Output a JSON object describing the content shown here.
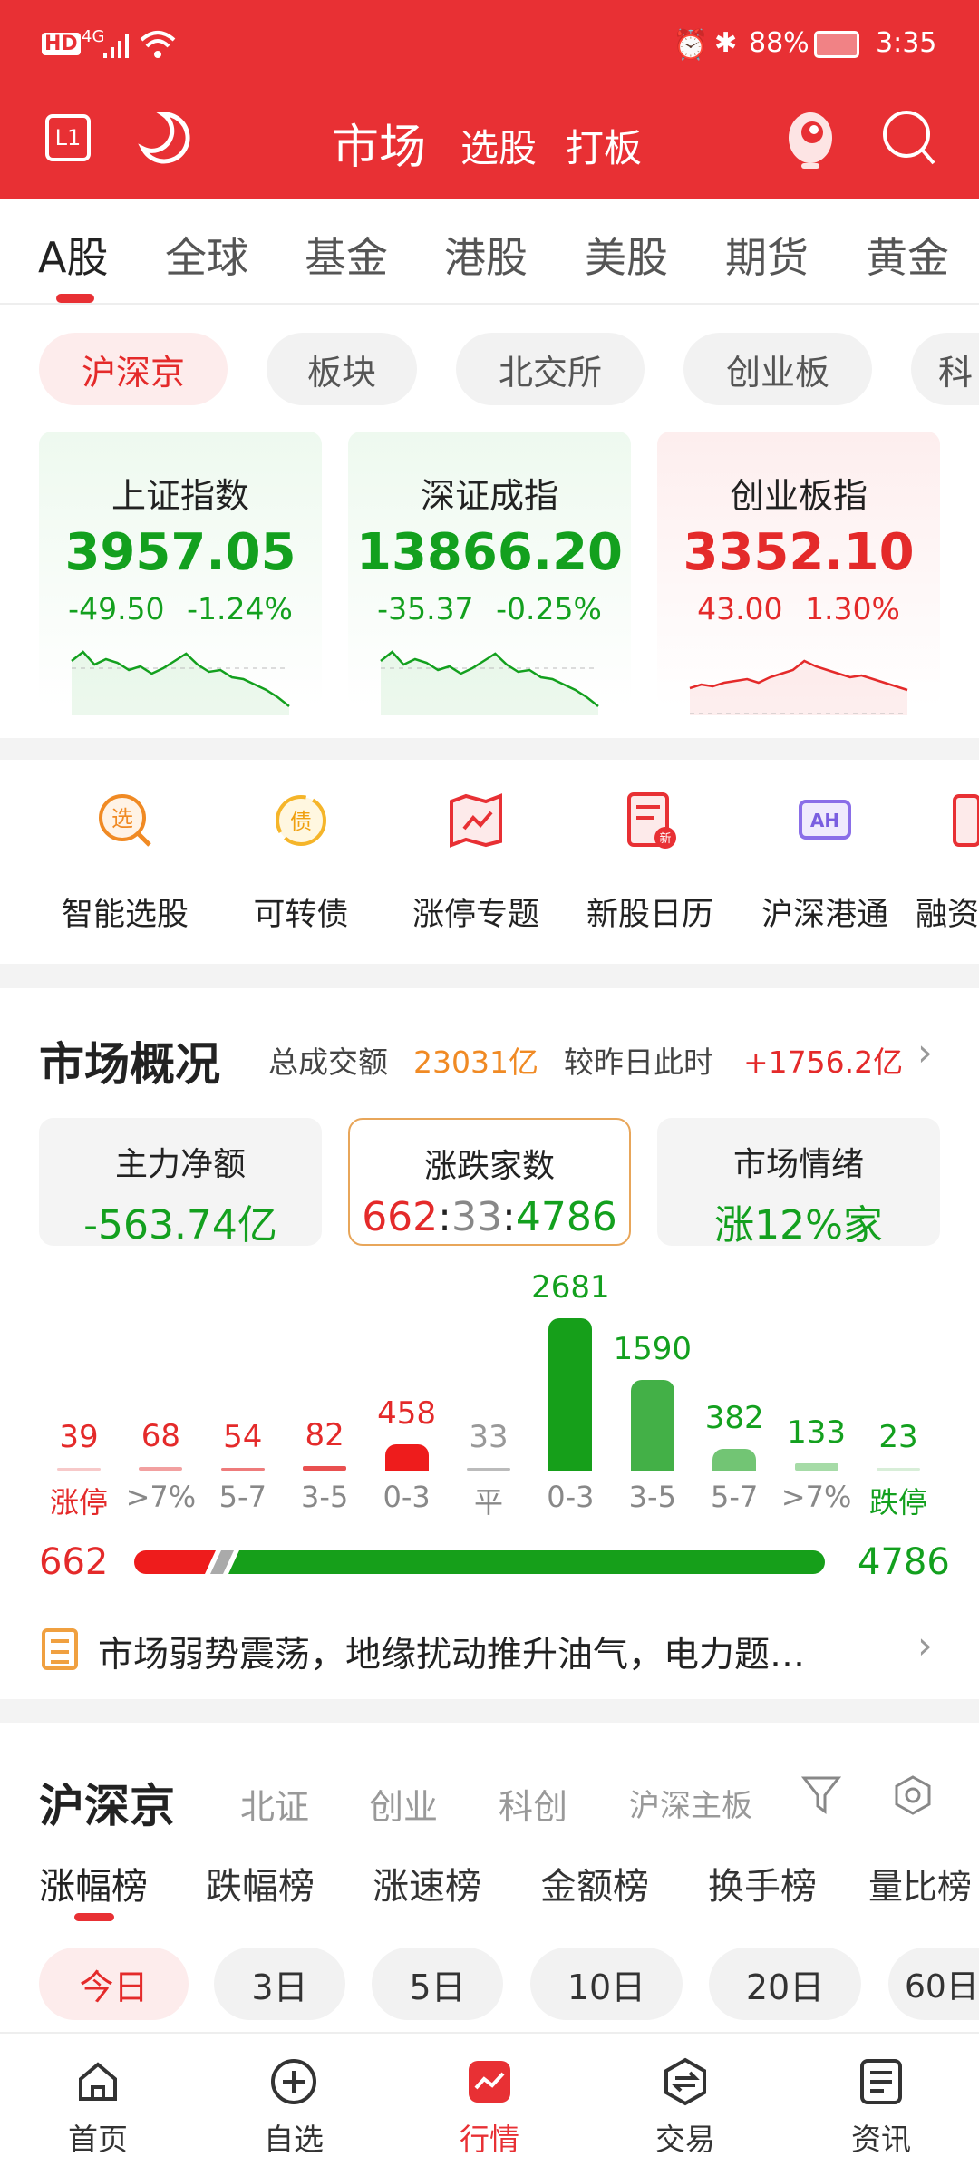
{
  "status_bar": {
    "network": "4G",
    "battery": "88%",
    "time": "3:35"
  },
  "header": {
    "title": "市场",
    "sub_tabs": [
      "选股",
      "打板"
    ],
    "level_badge": "L1",
    "accent": "#e83034"
  },
  "market_tabs": [
    {
      "label": "A股",
      "active": true
    },
    {
      "label": "全球"
    },
    {
      "label": "基金"
    },
    {
      "label": "港股"
    },
    {
      "label": "美股"
    },
    {
      "label": "期货"
    },
    {
      "label": "黄金"
    }
  ],
  "chips": [
    {
      "label": "沪深京",
      "active": true
    },
    {
      "label": "板块"
    },
    {
      "label": "北交所"
    },
    {
      "label": "创业板"
    },
    {
      "label": "科"
    }
  ],
  "indices": [
    {
      "name": "上证指数",
      "value": "3957.05",
      "change": "-49.50",
      "pct": "-1.24%",
      "trend": "down"
    },
    {
      "name": "深证成指",
      "value": "13866.20",
      "change": "-35.37",
      "pct": "-0.25%",
      "trend": "down"
    },
    {
      "name": "创业板指",
      "value": "3352.10",
      "change": "43.00",
      "pct": "1.30%",
      "trend": "up"
    }
  ],
  "tools": [
    {
      "label": "智能选股",
      "icon": "smart-pick-icon",
      "glyph": "选"
    },
    {
      "label": "可转债",
      "icon": "convertible-bond-icon",
      "glyph": "债"
    },
    {
      "label": "涨停专题",
      "icon": "limit-up-topic-icon"
    },
    {
      "label": "新股日历",
      "icon": "ipo-calendar-icon",
      "glyph": "新"
    },
    {
      "label": "沪深港通",
      "icon": "connect-icon",
      "glyph": "AH"
    },
    {
      "label": "融资"
    }
  ],
  "overview": {
    "title": "市场概况",
    "turnover_label": "总成交额",
    "turnover": "23031亿",
    "compare_label": "较昨日此时",
    "compare": "+1756.2亿",
    "boxes": [
      {
        "label": "主力净额",
        "value": "-563.74亿"
      },
      {
        "label": "涨跌家数",
        "up": "662",
        "flat": "33",
        "down": "4786",
        "sep": ":"
      },
      {
        "label": "市场情绪",
        "value": "涨12%家"
      }
    ],
    "distribution": {
      "categories": [
        "涨停",
        ">7%",
        "5-7",
        "3-5",
        "0-3",
        "平",
        "0-3",
        "3-5",
        "5-7",
        ">7%",
        "跌停"
      ],
      "values": [
        39,
        68,
        54,
        82,
        458,
        33,
        2681,
        1590,
        382,
        133,
        23
      ],
      "colors": [
        "#f7c9c9",
        "#f2a0a0",
        "#ee7b7b",
        "#e95050",
        "#ee1c1c",
        "#bbbbbb",
        "#169f1a",
        "#43b047",
        "#72c574",
        "#a6dba7",
        "#d8eed8"
      ]
    },
    "up_total": "662",
    "down_total": "4786",
    "news": "市场弱势震荡，地缘扰动推升油气，电力题…"
  },
  "list": {
    "title": "沪深京",
    "filters": [
      "北证",
      "创业",
      "科创",
      "沪深主板"
    ],
    "rank_tabs": [
      {
        "label": "涨幅榜",
        "active": true
      },
      {
        "label": "跌幅榜"
      },
      {
        "label": "涨速榜"
      },
      {
        "label": "金额榜"
      },
      {
        "label": "换手榜"
      },
      {
        "label": "量比榜"
      }
    ],
    "periods": [
      {
        "label": "今日",
        "active": true
      },
      {
        "label": "3日"
      },
      {
        "label": "5日"
      },
      {
        "label": "10日"
      },
      {
        "label": "20日"
      },
      {
        "label": "60日"
      }
    ]
  },
  "bottom_nav": [
    {
      "label": "首页",
      "icon": "home-icon"
    },
    {
      "label": "自选",
      "icon": "add-circle-icon"
    },
    {
      "label": "行情",
      "icon": "market-chart-icon",
      "active": true
    },
    {
      "label": "交易",
      "icon": "trade-icon"
    },
    {
      "label": "资讯",
      "icon": "news-icon"
    }
  ]
}
